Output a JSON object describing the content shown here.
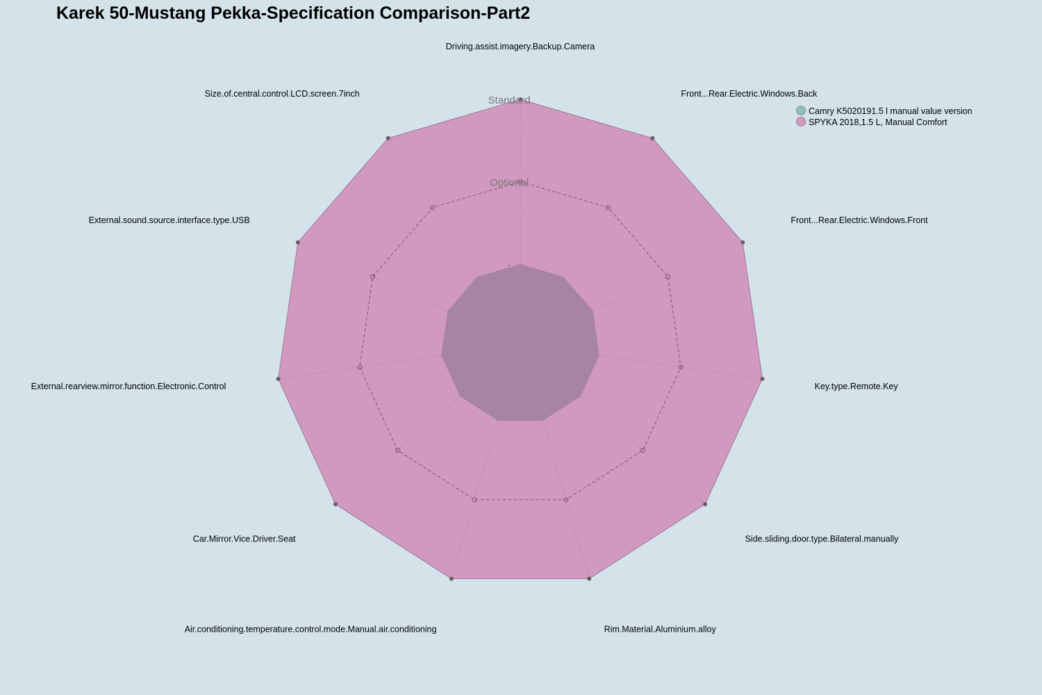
{
  "title": "Karek 50-Mustang Pekka-Specification Comparison-Part2",
  "chart_data": {
    "type": "radar",
    "title": "Karek 50-Mustang Pekka-Specification Comparison-Part2",
    "axes": [
      "Driving.assist.imagery.Backup.Camera",
      "Front...Rear.Electric.Windows.Back",
      "Front...Rear.Electric.Windows.Front",
      "Key.type.Remote.Key",
      "Side.sliding.door.type.Bilateral.manually",
      "Rim.Material.Aluminium.alloy",
      "Air.conditioning.temperature.control.mode.Manual.air.conditioning",
      "Car.Mirror.Vice.Driver.Seat",
      "External.rearview.mirror.function.Electronic.Control",
      "External.sound.source.interface.type.USB",
      "Size.of.central.control.LCD.screen.7inch"
    ],
    "levels": [
      "-",
      "Optional",
      "Standard"
    ],
    "scale": [
      0,
      2
    ],
    "series": [
      {
        "name": "Camry K5020191.5 l manual value version",
        "color": "#8fbcbb",
        "values": [
          0,
          0,
          0,
          0,
          0,
          0,
          0,
          0,
          0,
          0,
          0
        ]
      },
      {
        "name": "SPYKA 2018,1.5 L, Manual Comfort",
        "color": "#d199c0",
        "values": [
          2,
          2,
          2,
          2,
          2,
          2,
          2,
          2,
          2,
          2,
          2
        ]
      }
    ],
    "legend_position": "top-right"
  }
}
